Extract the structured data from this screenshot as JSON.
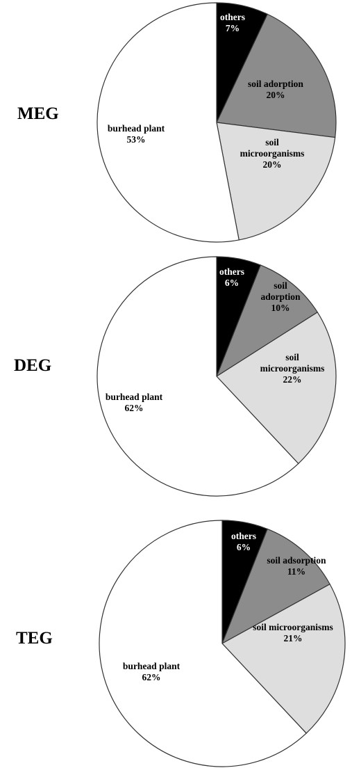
{
  "chart_data": [
    {
      "type": "pie",
      "label": "MEG",
      "colors": [
        "#000000",
        "#8c8c8c",
        "#dedede",
        "#ffffff"
      ],
      "slices": [
        {
          "lines": [
            "others",
            "7%"
          ],
          "value": 7
        },
        {
          "lines": [
            "soil adorption",
            "20%"
          ],
          "value": 20
        },
        {
          "lines": [
            "soil",
            "microorganisms",
            "20%"
          ],
          "value": 20
        },
        {
          "lines": [
            "burhead plant",
            "53%"
          ],
          "value": 53
        }
      ]
    },
    {
      "type": "pie",
      "label": "DEG",
      "colors": [
        "#000000",
        "#8c8c8c",
        "#dedede",
        "#ffffff"
      ],
      "slices": [
        {
          "lines": [
            "others",
            "6%"
          ],
          "value": 6
        },
        {
          "lines": [
            "soil",
            "adorption",
            "10%"
          ],
          "value": 10
        },
        {
          "lines": [
            "soil",
            "microorganisms",
            "22%"
          ],
          "value": 22
        },
        {
          "lines": [
            "burhead plant",
            "62%"
          ],
          "value": 62
        }
      ]
    },
    {
      "type": "pie",
      "label": "TEG",
      "colors": [
        "#000000",
        "#8c8c8c",
        "#dedede",
        "#ffffff"
      ],
      "slices": [
        {
          "lines": [
            "others",
            "6%"
          ],
          "value": 6
        },
        {
          "lines": [
            "soil adsorption",
            "11%"
          ],
          "value": 11
        },
        {
          "lines": [
            "soil microorganisms",
            "21%"
          ],
          "value": 21
        },
        {
          "lines": [
            "burhead plant",
            "62%"
          ],
          "value": 62
        }
      ]
    }
  ]
}
